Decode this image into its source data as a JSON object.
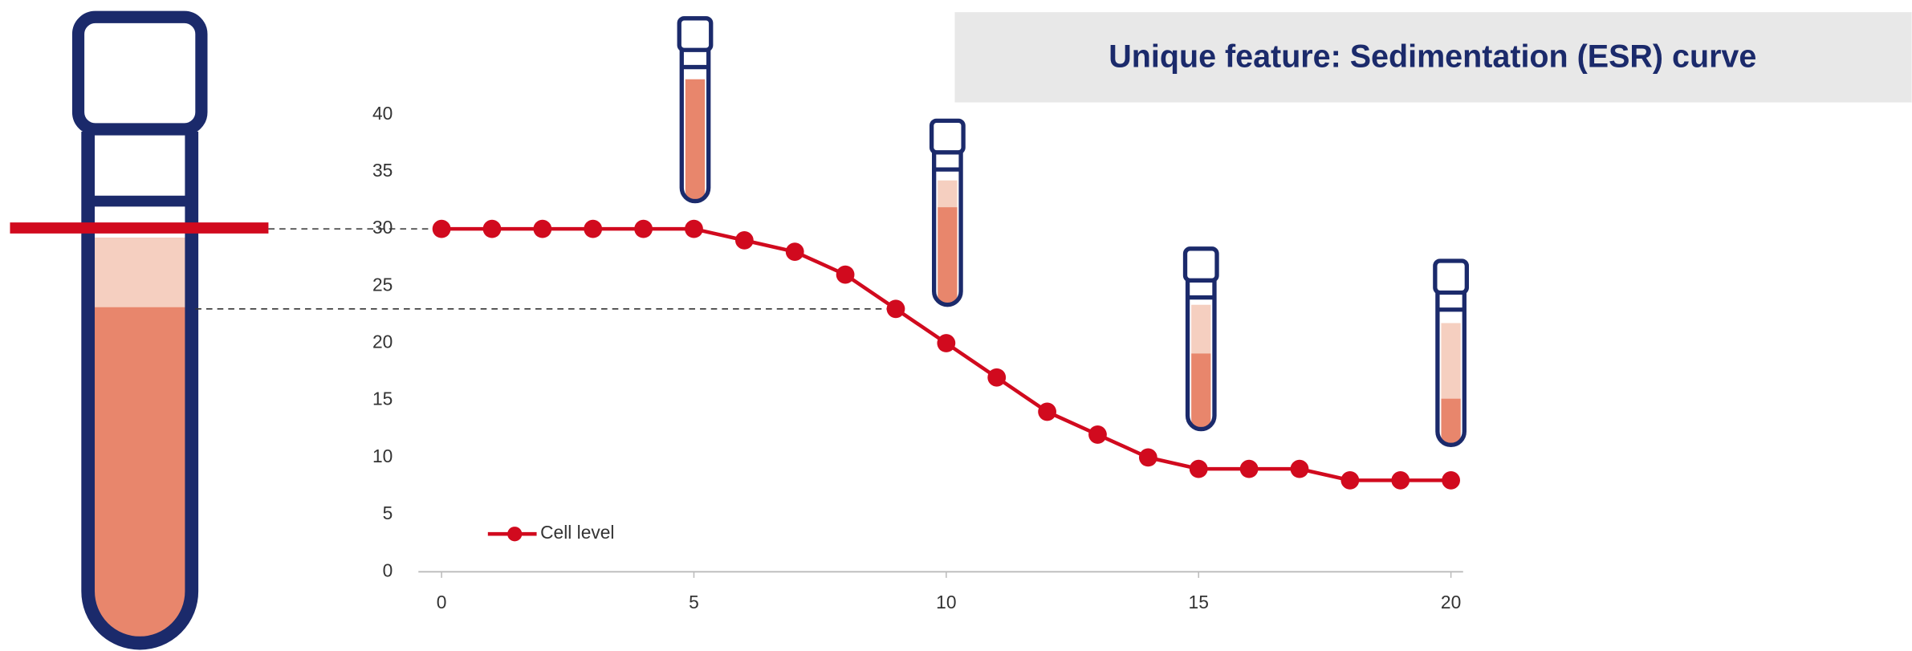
{
  "chart_data": {
    "type": "line",
    "title": "Unique feature: Sedimentation (ESR) curve",
    "x": [
      0,
      1,
      2,
      3,
      4,
      5,
      6,
      7,
      8,
      9,
      10,
      11,
      12,
      13,
      14,
      15,
      16,
      17,
      18,
      19,
      20
    ],
    "series": [
      {
        "name": "Cell level",
        "color": "#d10a1e",
        "values": [
          30,
          30,
          30,
          30,
          30,
          30,
          29,
          28,
          26,
          23,
          20,
          17,
          14,
          12,
          10,
          9,
          9,
          9,
          8,
          8,
          8
        ]
      }
    ],
    "xlim": [
      0,
      20
    ],
    "xticks": [
      0,
      5,
      10,
      15,
      20
    ],
    "ylim": [
      0,
      40
    ],
    "yticks": [
      0,
      5,
      10,
      15,
      20,
      25,
      30,
      35,
      40
    ],
    "grid": false
  }
}
